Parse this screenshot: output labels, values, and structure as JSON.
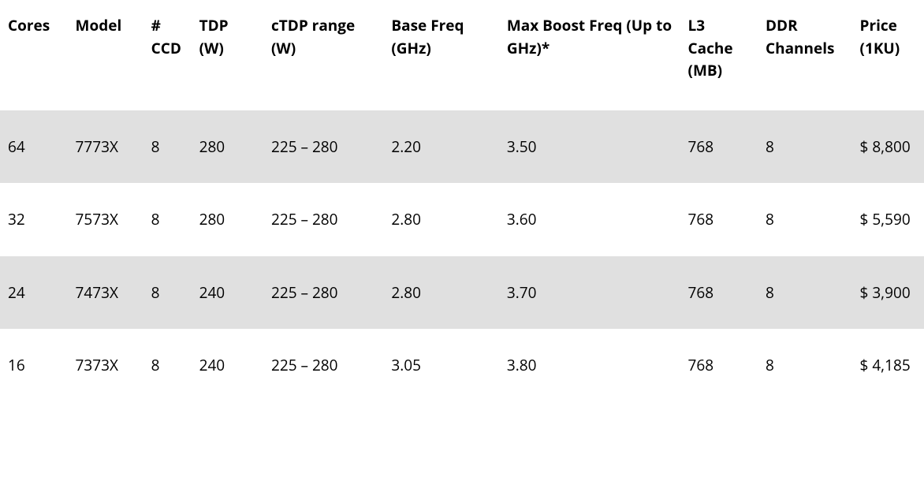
{
  "table": {
    "background_color": "#ffffff",
    "stripe_color": "#e0e0e0",
    "text_color": "#000000",
    "header_font_weight": 700,
    "body_font_weight": 400,
    "font_size_pt": 14,
    "columns": [
      {
        "key": "cores",
        "label": "Cores",
        "width_pct": 7.3
      },
      {
        "key": "model",
        "label": "Model",
        "width_pct": 8.2
      },
      {
        "key": "ccd",
        "label": "# CCD",
        "width_pct": 5.2
      },
      {
        "key": "tdp",
        "label": "TDP (W)",
        "width_pct": 7.8
      },
      {
        "key": "ctdp",
        "label": "cTDP range (W)",
        "width_pct": 13.0
      },
      {
        "key": "basefreq",
        "label": "Base Freq (GHz)",
        "width_pct": 12.5
      },
      {
        "key": "maxboost",
        "label": "Max Boost Freq (Up to GHz)*",
        "width_pct": 19.6
      },
      {
        "key": "l3",
        "label": "L3 Cache (MB)",
        "width_pct": 8.4
      },
      {
        "key": "ddr",
        "label": "DDR Channels",
        "width_pct": 10.2
      },
      {
        "key": "price",
        "label": "Price (1KU)",
        "width_pct": 7.8
      }
    ],
    "rows": [
      {
        "cores": "64",
        "model": "7773X",
        "ccd": "8",
        "tdp": "280",
        "ctdp": "225 – 280",
        "basefreq": "2.20",
        "maxboost": "3.50",
        "l3": "768",
        "ddr": "8",
        "price": "$ 8,800"
      },
      {
        "cores": "32",
        "model": "7573X",
        "ccd": "8",
        "tdp": "280",
        "ctdp": "225 – 280",
        "basefreq": "2.80",
        "maxboost": "3.60",
        "l3": "768",
        "ddr": "8",
        "price": "$ 5,590"
      },
      {
        "cores": "24",
        "model": "7473X",
        "ccd": "8",
        "tdp": "240",
        "ctdp": "225 – 280",
        "basefreq": "2.80",
        "maxboost": "3.70",
        "l3": "768",
        "ddr": "8",
        "price": "$ 3,900"
      },
      {
        "cores": "16",
        "model": "7373X",
        "ccd": "8",
        "tdp": "240",
        "ctdp": "225 – 280",
        "basefreq": "3.05",
        "maxboost": "3.80",
        "l3": "768",
        "ddr": "8",
        "price": "$ 4,185"
      }
    ]
  }
}
